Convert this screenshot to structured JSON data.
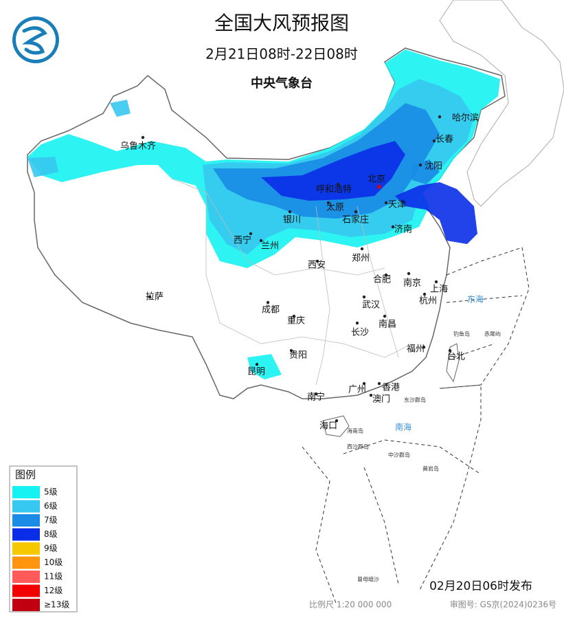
{
  "header": {
    "title": "全国大风预报图",
    "period": "2月21日08时-22日08时",
    "issuer": "中央气象台"
  },
  "legend": {
    "title": "图例",
    "items": [
      {
        "label": "5级",
        "color": "#16f2f2"
      },
      {
        "label": "6级",
        "color": "#36c8f0"
      },
      {
        "label": "7级",
        "color": "#1a8ce6"
      },
      {
        "label": "8级",
        "color": "#0a2ee8"
      },
      {
        "label": "9级",
        "color": "#f5c800"
      },
      {
        "label": "10级",
        "color": "#ff9410"
      },
      {
        "label": "11级",
        "color": "#ff5a5a"
      },
      {
        "label": "12级",
        "color": "#f20000"
      },
      {
        "label": "≥13级",
        "color": "#c00010"
      }
    ]
  },
  "cities": [
    "哈尔滨",
    "长春",
    "沈阳",
    "乌鲁木齐",
    "北京",
    "呼和浩特",
    "天津",
    "太原",
    "石家庄",
    "银川",
    "济南",
    "西宁",
    "兰州",
    "西安",
    "郑州",
    "合肥",
    "南京",
    "上海",
    "杭州",
    "拉萨",
    "成都",
    "武汉",
    "重庆",
    "南昌",
    "长沙",
    "福州",
    "台北",
    "贵阳",
    "昆明",
    "广州",
    "香港",
    "澳门",
    "南宁",
    "海口"
  ],
  "sea_labels": [
    "东海",
    "南海"
  ],
  "island_labels": [
    "钓鱼岛",
    "赤尾屿",
    "东沙群岛",
    "海南岛",
    "西沙群岛",
    "中沙群岛",
    "黄岩岛",
    "曾母暗沙"
  ],
  "footer": {
    "issued": "02月20日06时发布",
    "scale": "比例尺 1:20 000 000",
    "map_number": "审图号: GS京(2024)0236号"
  }
}
